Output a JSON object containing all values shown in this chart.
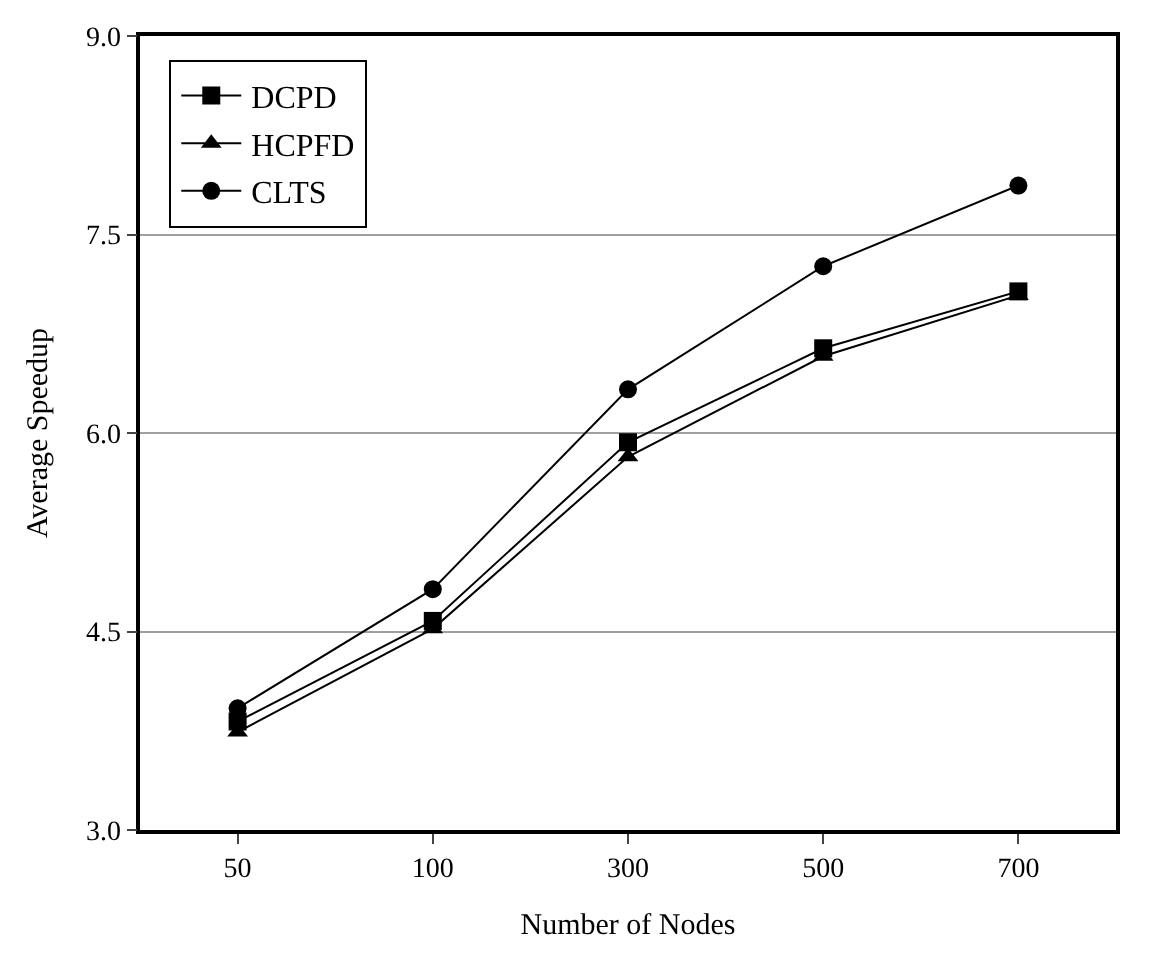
{
  "chart_data": {
    "type": "line",
    "xlabel": "Number of Nodes",
    "ylabel": "Average Speedup",
    "categories": [
      "50",
      "100",
      "300",
      "500",
      "700"
    ],
    "ylim": [
      3.0,
      9.0
    ],
    "yticks": [
      {
        "value": 3,
        "label": "3.0"
      },
      {
        "value": 4.5,
        "label": "4.5"
      },
      {
        "value": 6,
        "label": "6.0"
      },
      {
        "value": 7.5,
        "label": "7.5"
      },
      {
        "value": 9,
        "label": "9.0"
      }
    ],
    "grid": "y",
    "legend": "top left",
    "line_style": "solid",
    "series": [
      {
        "name": "DCPD",
        "color": "#000000",
        "marker": "square",
        "values": [
          3.82,
          4.58,
          5.93,
          6.64,
          7.07
        ]
      },
      {
        "name": "HCPFD",
        "color": "#000000",
        "marker": "triangle",
        "values": [
          3.74,
          4.52,
          5.82,
          6.58,
          7.04
        ]
      },
      {
        "name": "CLTS",
        "color": "#000000",
        "marker": "circle",
        "values": [
          3.92,
          4.82,
          6.33,
          7.26,
          7.87
        ]
      }
    ]
  }
}
